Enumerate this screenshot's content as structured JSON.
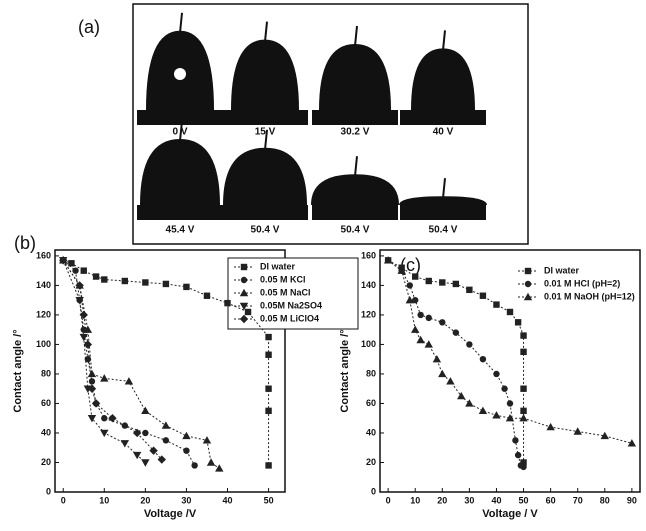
{
  "panel_a": {
    "label": "(a)",
    "captions": [
      "0 V",
      "15 V",
      "30.2 V",
      "40 V",
      "45.4 V",
      "50.4 V",
      "50.4 V",
      "50.4 V"
    ]
  },
  "chart_data": [
    {
      "type": "line",
      "label": "(b)",
      "xlabel": "Voltage /V",
      "ylabel": "Contact angle /°",
      "xlim": [
        -2,
        54
      ],
      "ylim": [
        0,
        164
      ],
      "xticks": [
        0,
        10,
        20,
        30,
        40,
        50
      ],
      "yticks": [
        0,
        20,
        40,
        60,
        80,
        100,
        120,
        140,
        160
      ],
      "legend": "upper right",
      "legend_box": true,
      "series": [
        {
          "name": "DI water",
          "color": "#222",
          "marker": "square",
          "x": [
            0,
            2,
            5,
            8,
            10,
            15,
            20,
            25,
            30,
            35,
            40,
            45,
            50,
            50,
            50,
            50,
            50
          ],
          "values": [
            157,
            155,
            150,
            146,
            144,
            143,
            142,
            141,
            139,
            133,
            128,
            122,
            105,
            93,
            70,
            55,
            18
          ]
        },
        {
          "name": "0.05 M KCl",
          "color": "#222",
          "marker": "circle",
          "x": [
            0,
            3,
            4,
            5,
            6,
            7,
            8,
            10,
            15,
            20,
            25,
            30,
            32
          ],
          "values": [
            157,
            150,
            130,
            110,
            90,
            75,
            60,
            50,
            45,
            40,
            35,
            28,
            18
          ]
        },
        {
          "name": "0.05 M NaCl",
          "color": "#222",
          "marker": "triangle",
          "x": [
            0,
            4,
            6,
            7,
            10,
            16,
            20,
            25,
            30,
            35,
            36,
            38
          ],
          "values": [
            157,
            140,
            110,
            80,
            77,
            75,
            55,
            45,
            38,
            35,
            20,
            16
          ]
        },
        {
          "name": "0.05M Na2SO4",
          "color": "#222",
          "marker": "triangle-down",
          "x": [
            0,
            4,
            5,
            6,
            7,
            10,
            15,
            18,
            20
          ],
          "values": [
            157,
            130,
            105,
            70,
            50,
            40,
            33,
            25,
            20
          ]
        },
        {
          "name": "0.05 M LiClO4",
          "color": "#222",
          "marker": "diamond",
          "x": [
            0,
            4,
            5,
            6,
            7,
            8,
            12,
            18,
            22,
            24
          ],
          "values": [
            157,
            140,
            120,
            100,
            70,
            60,
            50,
            40,
            28,
            22
          ]
        }
      ]
    },
    {
      "type": "line",
      "label": "(c)",
      "xlabel": "Voltage / V",
      "ylabel": "Contact angle /°",
      "xlim": [
        -3,
        93
      ],
      "ylim": [
        0,
        164
      ],
      "xticks": [
        0,
        10,
        20,
        30,
        40,
        50,
        60,
        70,
        80,
        90
      ],
      "yticks": [
        0,
        20,
        40,
        60,
        80,
        100,
        120,
        140,
        160
      ],
      "legend": "upper right",
      "legend_box": false,
      "series": [
        {
          "name": "DI water",
          "color": "#222",
          "marker": "square",
          "x": [
            0,
            5,
            10,
            15,
            20,
            25,
            30,
            35,
            40,
            45,
            48,
            50,
            50,
            50,
            50,
            50
          ],
          "values": [
            157,
            152,
            146,
            143,
            142,
            141,
            137,
            133,
            127,
            122,
            115,
            106,
            95,
            70,
            55,
            20
          ]
        },
        {
          "name": "0.01 M HCl (pH=2)",
          "color": "#222",
          "marker": "circle",
          "x": [
            0,
            5,
            8,
            10,
            12,
            15,
            20,
            25,
            30,
            35,
            40,
            43,
            45,
            47,
            48,
            49,
            50
          ],
          "values": [
            157,
            150,
            140,
            130,
            120,
            118,
            115,
            108,
            100,
            90,
            80,
            70,
            60,
            35,
            25,
            18,
            17
          ]
        },
        {
          "name": "0.01 M NaOH (pH=12)",
          "color": "#222",
          "marker": "triangle",
          "x": [
            0,
            5,
            8,
            10,
            12,
            15,
            18,
            20,
            23,
            27,
            30,
            35,
            40,
            45,
            50,
            60,
            70,
            80,
            90
          ],
          "values": [
            157,
            150,
            130,
            110,
            103,
            100,
            90,
            80,
            75,
            65,
            60,
            55,
            52,
            50,
            50,
            44,
            41,
            38,
            33
          ]
        }
      ]
    }
  ]
}
